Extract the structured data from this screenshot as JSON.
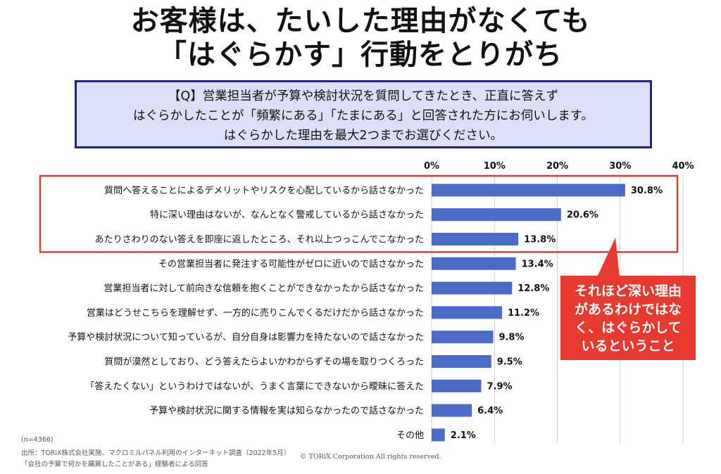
{
  "title": {
    "line1": "お客様は、たいした理由がなくても",
    "line2": "「はぐらかす」行動をとりがち"
  },
  "question": {
    "line1": "【Q】営業担当者が予算や検討状況を質問してきたとき、正直に答えず",
    "line2": "はぐらかしたことが「頻繁にある」「たまにある」と回答された方にお伺いします。",
    "line3": "はぐらかした理由を最大2つまでお選びください。"
  },
  "callout": {
    "line1": "それほど深い理由",
    "line2": "があるわけではな",
    "line3": "く、はぐらかして",
    "line4": "いるということ"
  },
  "footer": {
    "n": "(n=4366)",
    "source": "出所：TORiX株式会社実施、マクロミルパネル利用のインターネット調査（2022年5月）",
    "subject": "「会社の予算で何かを購買したことがある」経験者による回答",
    "copyright": "© TORiX Corporation All rights reserved."
  },
  "colors": {
    "bar": "#4a6bc8",
    "highlight": "#e63a2e",
    "gridline": "#cfcfcf"
  },
  "chart_data": {
    "type": "bar",
    "orientation": "horizontal",
    "xlim": [
      0,
      40
    ],
    "ticks": [
      0,
      10,
      20,
      30,
      40
    ],
    "tick_labels": [
      "0%",
      "10%",
      "20%",
      "30%",
      "40%"
    ],
    "grid": true,
    "highlighted_count": 3,
    "categories": [
      "質問へ答えることによるデメリットやリスクを心配しているから話さなかった",
      "特に深い理由はないが、なんとなく警戒しているから話さなかった",
      "あたりさわりのない答えを即座に返したところ、それ以上つっこんでこなかった",
      "その営業担当者に発注する可能性がゼロに近いので話さなかった",
      "営業担当者に対して前向きな信頼を抱くことができなかったから話さなかった",
      "営業はどうせこちらを理解せず、一方的に売りこんでくるだけだから話さなかった",
      "予算や検討状況について知っているが、自分自身は影響力を持たないので話さなかった",
      "質問が漠然としており、どう答えたらよいかわからずその場を取りつくろった",
      "「答えたくない」というわけではないが、うまく言葉にできないから曖昧に答えた",
      "予算や検討状況に関する情報を実は知らなかったので話さなかった",
      "その他"
    ],
    "values": [
      30.8,
      20.6,
      13.8,
      13.4,
      12.8,
      11.2,
      9.8,
      9.5,
      7.9,
      6.4,
      2.1
    ],
    "value_labels": [
      "30.8%",
      "20.6%",
      "13.8%",
      "13.4%",
      "12.8%",
      "11.2%",
      "9.8%",
      "9.5%",
      "7.9%",
      "6.4%",
      "2.1%"
    ]
  }
}
